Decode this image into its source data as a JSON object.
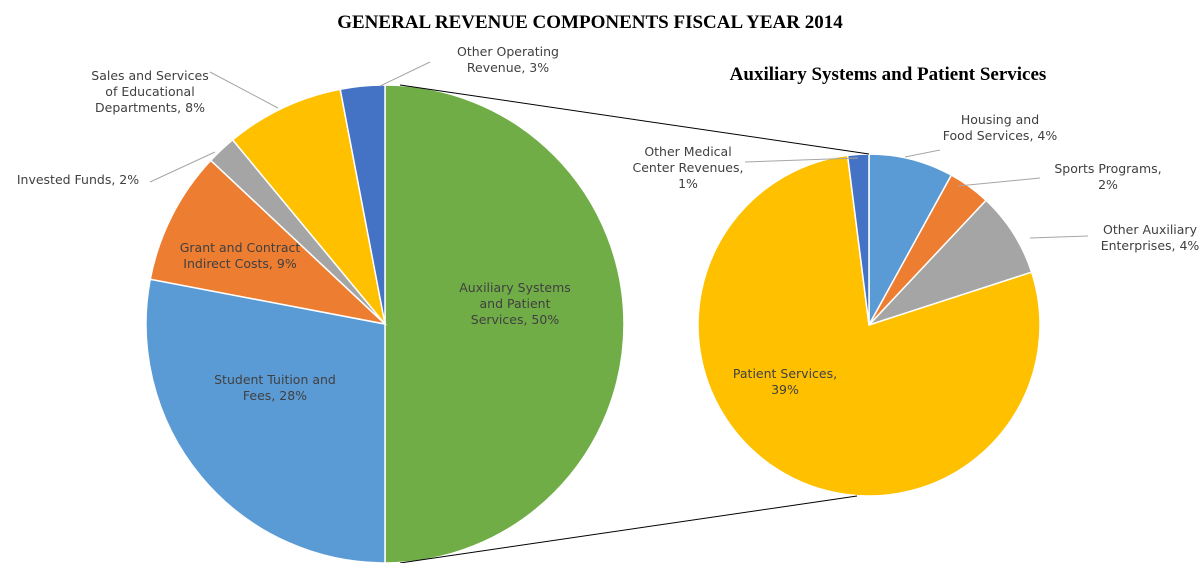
{
  "chart_data": [
    {
      "type": "pie",
      "title": "GENERAL REVENUE COMPONENTS FISCAL YEAR 2014",
      "values": [
        50,
        28,
        9,
        2,
        8,
        3
      ],
      "value_labels": [
        "Auxiliary Systems and Patient Services, 50%",
        "Student Tuition and Fees, 28%",
        "Grant and Contract Indirect Costs, 9%",
        "Invested Funds, 2%",
        "Sales and Services of Educational Departments, 8%",
        "Other Operating Revenue, 3%"
      ],
      "colors": [
        "#70ad47",
        "#5b9bd5",
        "#ed7d31",
        "#a5a5a5",
        "#ffc000",
        "#4472c4"
      ]
    },
    {
      "type": "pie",
      "title": "Auxiliary Systems and Patient Services",
      "values": [
        4,
        2,
        4,
        39,
        1
      ],
      "value_labels": [
        "Housing and Food Services, 4%",
        "Sports Programs, 2%",
        "Other Auxiliary Enterprises, 4%",
        "Patient Services, 39%",
        "Other Medical Center Revenues, 1%"
      ],
      "colors": [
        "#5b9bd5",
        "#ed7d31",
        "#a5a5a5",
        "#ffc000",
        "#4472c4"
      ]
    }
  ]
}
